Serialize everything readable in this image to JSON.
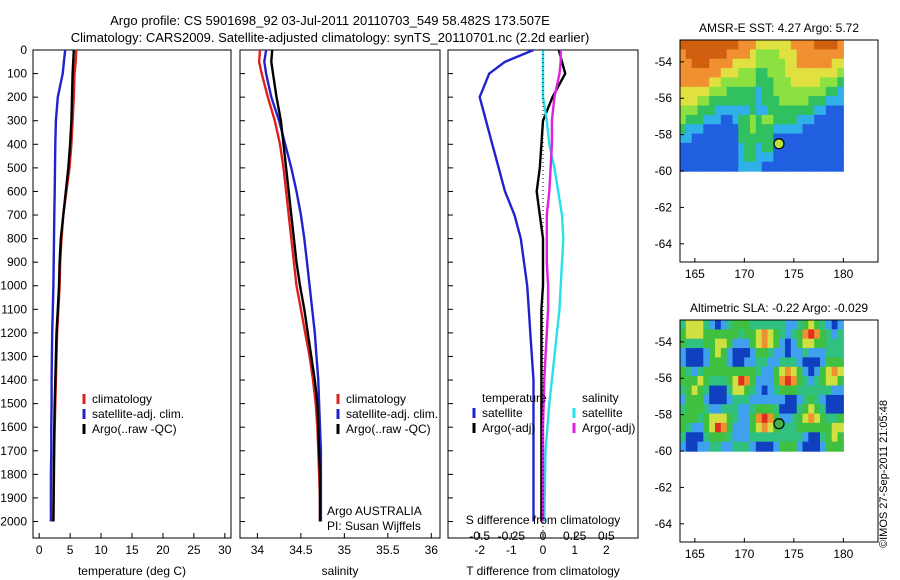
{
  "header": {
    "title_line1": "Argo profile: CS 5901698_92 03-Jul-2011 20110703_549 58.482S 173.507E",
    "title_line2": "Climatology: CARS2009. Satellite-adjusted climatology: synTS_20110701.nc (2.2d earlier)"
  },
  "footer": {
    "stamp": "©IMOS 27-Sep-2011 21:05:48"
  },
  "colors": {
    "climatology": "#e0201c",
    "satellite": "#2222cc",
    "argo": "#000000",
    "sat_salinity": "#28e0e8",
    "argo_salinity_adj": "#e020e0"
  },
  "chart_data": [
    {
      "type": "line",
      "xlabel": "temperature (deg C)",
      "ylim": [
        2070,
        0
      ],
      "xlim": [
        -1,
        31
      ],
      "xticks": [
        0,
        5,
        10,
        15,
        20,
        25,
        30
      ],
      "yticks": [
        0,
        100,
        200,
        300,
        400,
        500,
        600,
        700,
        800,
        900,
        1000,
        1100,
        1200,
        1300,
        1400,
        1500,
        1600,
        1700,
        1800,
        1900,
        2000
      ],
      "legend": [
        "climatology",
        "satellite-adj. clim.",
        "Argo(..raw -QC)"
      ],
      "legend_position": "center",
      "series": [
        {
          "name": "climatology",
          "x": [
            6.0,
            5.9,
            5.7,
            5.6,
            5.4,
            5.2,
            4.9,
            4.4,
            3.9,
            3.6,
            3.4,
            3.3,
            3.1,
            2.9,
            2.8,
            2.7,
            2.6,
            2.5,
            2.45,
            2.4,
            2.35,
            2.3
          ],
          "y": [
            0,
            50,
            100,
            200,
            300,
            400,
            500,
            600,
            700,
            800,
            900,
            1000,
            1100,
            1200,
            1300,
            1400,
            1500,
            1600,
            1700,
            1800,
            1900,
            2000
          ]
        },
        {
          "name": "satellite-adj. clim.",
          "x": [
            4.2,
            4.0,
            3.8,
            3.0,
            2.7,
            2.6,
            2.55,
            2.5,
            2.45,
            2.4,
            2.35,
            2.3,
            2.2,
            2.1,
            2.05,
            2.0,
            2.0,
            1.95,
            1.95,
            1.9,
            1.9
          ],
          "y": [
            0,
            50,
            100,
            200,
            300,
            400,
            500,
            600,
            700,
            800,
            900,
            1000,
            1100,
            1200,
            1300,
            1400,
            1500,
            1600,
            1700,
            1800,
            2000
          ]
        },
        {
          "name": "Argo(..raw -QC)",
          "x": [
            5.6,
            5.5,
            5.4,
            5.3,
            5.2,
            5.0,
            4.7,
            4.3,
            3.9,
            3.5,
            3.3,
            3.2,
            3.0,
            2.8,
            2.7,
            2.6,
            2.5,
            2.45,
            2.4,
            2.35,
            2.3
          ],
          "y": [
            0,
            50,
            100,
            200,
            300,
            400,
            500,
            600,
            700,
            800,
            900,
            1000,
            1100,
            1200,
            1300,
            1400,
            1500,
            1600,
            1700,
            1800,
            2000
          ]
        }
      ]
    },
    {
      "type": "line",
      "xlabel": "salinity",
      "ylim": [
        2070,
        0
      ],
      "xlim": [
        33.8,
        36.1
      ],
      "xticks": [
        34,
        34.5,
        35,
        35.5,
        36
      ],
      "legend": [
        "climatology",
        "satellite-adj. clim.",
        "Argo(..raw -QC)"
      ],
      "legend_position": "center",
      "annotations": [
        "Argo AUSTRALIA",
        "PI: Susan Wijffels"
      ],
      "series": [
        {
          "name": "climatology",
          "x": [
            34.03,
            34.02,
            34.05,
            34.12,
            34.2,
            34.26,
            34.3,
            34.33,
            34.36,
            34.39,
            34.42,
            34.45,
            34.5,
            34.55,
            34.6,
            34.64,
            34.67,
            34.69,
            34.7,
            34.71,
            34.72,
            34.72
          ],
          "y": [
            0,
            50,
            100,
            200,
            300,
            400,
            500,
            600,
            700,
            800,
            900,
            1000,
            1100,
            1200,
            1300,
            1400,
            1500,
            1600,
            1700,
            1800,
            1900,
            2000
          ]
        },
        {
          "name": "satellite-adj. clim.",
          "x": [
            34.1,
            34.08,
            34.1,
            34.16,
            34.25,
            34.32,
            34.39,
            34.45,
            34.5,
            34.54,
            34.57,
            34.6,
            34.63,
            34.66,
            34.68,
            34.7,
            34.71,
            34.72,
            34.73,
            34.73,
            34.73
          ],
          "y": [
            0,
            50,
            100,
            200,
            300,
            400,
            500,
            600,
            700,
            800,
            900,
            1000,
            1100,
            1200,
            1300,
            1400,
            1500,
            1600,
            1700,
            1800,
            2000
          ]
        },
        {
          "name": "Argo(..raw -QC)",
          "x": [
            34.17,
            34.16,
            34.18,
            34.22,
            34.27,
            34.3,
            34.33,
            34.36,
            34.39,
            34.42,
            34.45,
            34.49,
            34.54,
            34.58,
            34.62,
            34.66,
            34.69,
            34.7,
            34.71,
            34.72,
            34.72
          ],
          "y": [
            0,
            50,
            100,
            200,
            300,
            400,
            500,
            600,
            700,
            800,
            900,
            1000,
            1100,
            1200,
            1300,
            1400,
            1500,
            1600,
            1700,
            1800,
            2000
          ]
        }
      ]
    },
    {
      "type": "line",
      "xlabel": "T difference from climatology",
      "top_axis_label": "S difference from climatology",
      "ylim": [
        2070,
        0
      ],
      "xlim": [
        -3,
        3
      ],
      "xticks": [
        -2,
        -1,
        0,
        1,
        2
      ],
      "top_ticks": [
        "-0.5",
        "-0.25",
        "0",
        "0.25",
        "0.5"
      ],
      "legend": [
        "temperature",
        "satellite",
        "Argo(-adj)",
        "salinity",
        "satellite",
        "Argo(-adj)"
      ],
      "legend_position": "center",
      "series": [
        {
          "name": "satellite",
          "group": "temperature",
          "x": [
            -0.3,
            -1.2,
            -1.7,
            -2.0,
            -1.8,
            -1.6,
            -1.4,
            -1.2,
            -0.9,
            -0.7,
            -0.6,
            -0.5,
            -0.45,
            -0.4,
            -0.35,
            -0.3,
            -0.3,
            -0.3
          ],
          "y": [
            0,
            50,
            100,
            200,
            300,
            400,
            500,
            600,
            700,
            800,
            900,
            1000,
            1100,
            1200,
            1300,
            1400,
            1600,
            2000
          ]
        },
        {
          "name": "Argo(-adj)",
          "group": "temperature",
          "x": [
            0.5,
            0.6,
            0.7,
            0.3,
            0.0,
            -0.05,
            -0.1,
            -0.2,
            -0.1,
            0.0,
            0.0,
            0.0,
            -0.05,
            -0.05,
            -0.05,
            -0.05,
            -0.05,
            -0.05
          ],
          "y": [
            0,
            50,
            100,
            200,
            300,
            400,
            500,
            600,
            700,
            800,
            900,
            1000,
            1100,
            1200,
            1300,
            1400,
            1600,
            2000
          ]
        },
        {
          "name": "satellite",
          "group": "salinity",
          "x": [
            0.0,
            0.0,
            0.0,
            0.0,
            0.03,
            0.05,
            0.09,
            0.12,
            0.15,
            0.16,
            0.15,
            0.14,
            0.13,
            0.11,
            0.09,
            0.07,
            0.05,
            0.02,
            0.01
          ],
          "y": [
            0,
            50,
            100,
            200,
            300,
            400,
            500,
            600,
            700,
            800,
            900,
            1000,
            1100,
            1200,
            1300,
            1400,
            1500,
            1700,
            2000
          ]
        },
        {
          "name": "Argo(-adj)",
          "group": "salinity",
          "x": [
            0.14,
            0.14,
            0.13,
            0.09,
            0.07,
            0.07,
            0.06,
            0.05,
            0.03,
            0.03,
            0.03,
            0.04,
            0.04,
            0.03,
            0.02,
            0.01,
            0.0,
            0.0
          ],
          "y": [
            0,
            50,
            100,
            200,
            300,
            400,
            500,
            600,
            700,
            800,
            900,
            1000,
            1100,
            1200,
            1300,
            1400,
            1600,
            2000
          ]
        }
      ]
    },
    {
      "type": "heatmap",
      "title": "AMSR-E SST: 4.27 Argo: 5.72",
      "xlim": [
        163.5,
        183.5
      ],
      "ylim": [
        -65,
        -52.8
      ],
      "xticks": [
        165,
        170,
        175,
        180
      ],
      "yticks": [
        -54,
        -56,
        -58,
        -60,
        -62,
        -64
      ],
      "data_extent": {
        "lon": [
          163.5,
          180
        ],
        "lat": [
          -60,
          -52.8
        ]
      },
      "marker": {
        "lon": 173.5,
        "lat": -58.5
      }
    },
    {
      "type": "heatmap",
      "title": "Altimetric SLA: -0.22 Argo: -0.029",
      "xlim": [
        163.5,
        183.5
      ],
      "ylim": [
        -65,
        -52.8
      ],
      "xticks": [
        165,
        170,
        175,
        180
      ],
      "yticks": [
        -54,
        -56,
        -58,
        -60,
        -62,
        -64
      ],
      "data_extent": {
        "lon": [
          163.5,
          180
        ],
        "lat": [
          -60,
          -52.8
        ]
      },
      "marker": {
        "lon": 173.5,
        "lat": -58.5
      }
    }
  ]
}
